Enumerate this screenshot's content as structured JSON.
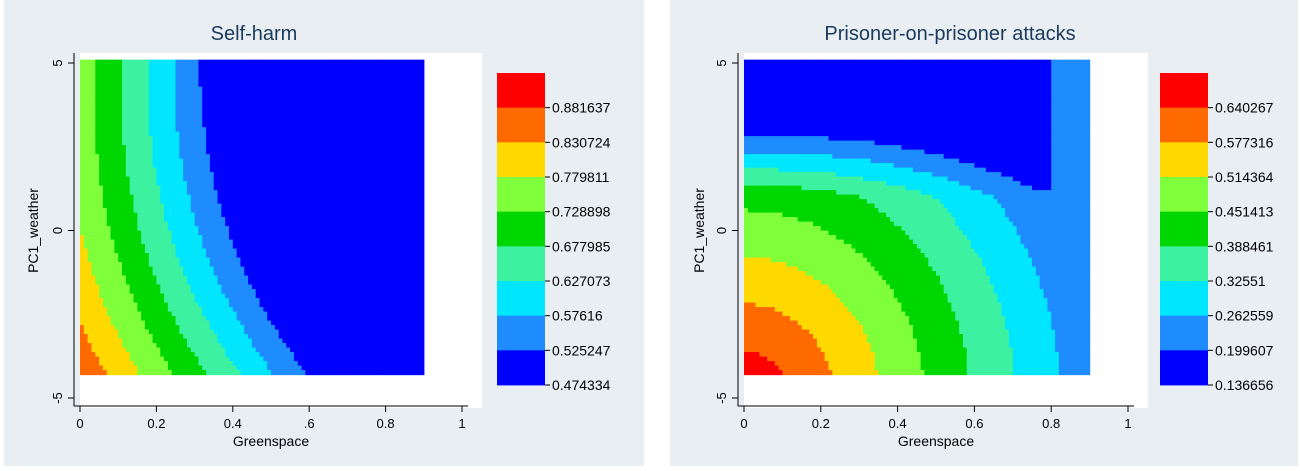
{
  "chart_data": [
    {
      "type": "heatmap",
      "title": "Self-harm",
      "xlabel": "Greenspace",
      "ylabel": "PC1_weather",
      "xlim": [
        0,
        1
      ],
      "ylim": [
        -5,
        5
      ],
      "x_ticks": [
        "0",
        "0.2",
        "0.4",
        ".6",
        "0.8",
        "1"
      ],
      "y_ticks": [
        "-5",
        "0",
        "5"
      ],
      "data_extent": {
        "x": [
          0,
          0.9
        ],
        "y": [
          -4.3,
          5.1
        ]
      },
      "legend_values": [
        "0.881637",
        "0.830724",
        "0.779811",
        "0.728898",
        "0.677985",
        "0.627073",
        "0.57616",
        "0.525247",
        "0.474334"
      ],
      "legend_placement": "right",
      "colors": [
        "#ff0000",
        "#ff6a00",
        "#ffd800",
        "#7fff3a",
        "#00d600",
        "#3cf2a0",
        "#00e6ff",
        "#1e8cff",
        "#0000ff"
      ]
    },
    {
      "type": "heatmap",
      "title": "Prisoner-on-prisoner attacks",
      "xlabel": "Greenspace",
      "ylabel": "PC1_weather",
      "xlim": [
        0,
        1
      ],
      "ylim": [
        -5,
        5
      ],
      "x_ticks": [
        "0",
        "0.2",
        "0.4",
        "0.6",
        "0.8",
        "1"
      ],
      "y_ticks": [
        "-5",
        "0",
        "5"
      ],
      "data_extent": {
        "x": [
          0,
          0.9
        ],
        "y": [
          -4.3,
          5.1
        ]
      },
      "legend_values": [
        "0.640267",
        "0.577316",
        "0.514364",
        "0.451413",
        "0.388461",
        "0.32551",
        "0.262559",
        "0.199607",
        "0.136656"
      ],
      "legend_placement": "right",
      "colors": [
        "#ff0000",
        "#ff6a00",
        "#ffd800",
        "#7fff3a",
        "#00d600",
        "#3cf2a0",
        "#00e6ff",
        "#1e8cff",
        "#0000ff"
      ]
    }
  ]
}
